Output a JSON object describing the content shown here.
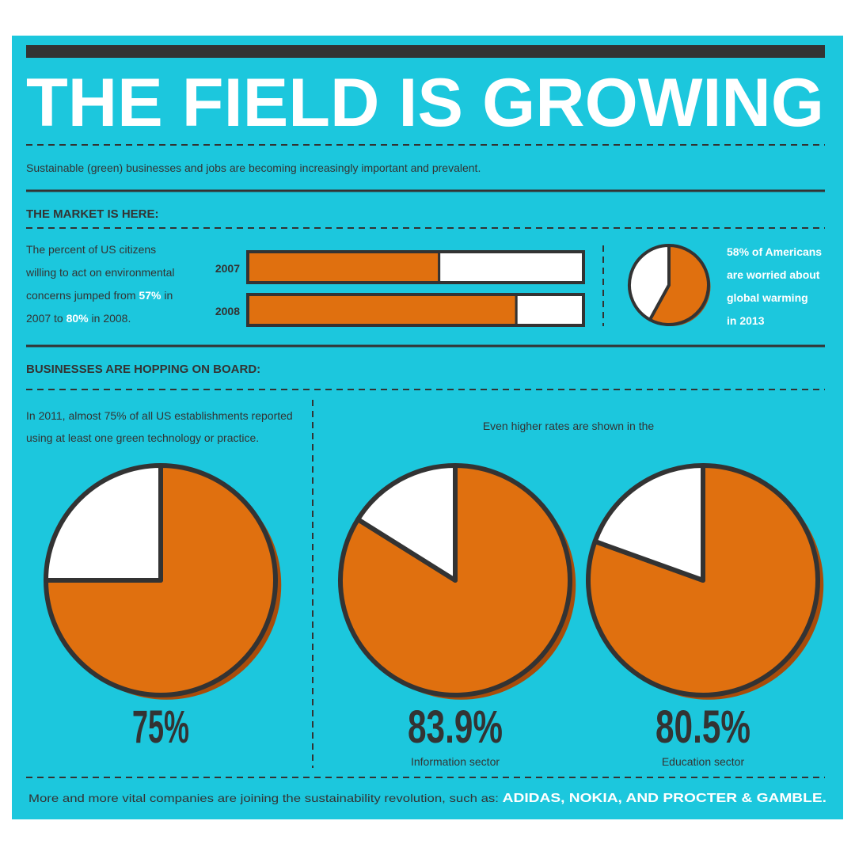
{
  "header": {
    "title": "THE FIELD IS GROWING",
    "subtitle": "Sustainable (green) businesses and jobs are becoming increasingly important and prevalent."
  },
  "market": {
    "heading": "THE MARKET IS HERE:",
    "lines": [
      [
        "The percent of US citizens"
      ],
      [
        "willing to act on environmental"
      ],
      [
        "concerns jumped from ",
        "57%",
        " in"
      ],
      [
        "2007 to ",
        "80%",
        " in 2008."
      ]
    ]
  },
  "businesses": {
    "heading": "BUSINESSES ARE HOPPING ON BOARD:",
    "lines": [
      [
        "In 2011, almost 75% of all US establishments reported"
      ],
      [
        "using at least one green technology or practice."
      ]
    ],
    "intro": "Even higher rates are shown in the"
  },
  "footer": {
    "parts": [
      "More and more vital companies are joining the sustainability revolution, such as: ",
      "ADIDAS, NOKIA, AND PROCTER & GAMBLE."
    ]
  },
  "chart_data": [
    {
      "type": "bar",
      "orientation": "horizontal",
      "categories": [
        "2007",
        "2008"
      ],
      "series": [
        {
          "color": "#e0700f",
          "values": [
            57,
            80
          ]
        },
        {
          "color": "#ffffff",
          "values": [
            43,
            20
          ]
        }
      ]
    },
    {
      "type": "pie",
      "values": [
        58,
        42
      ],
      "colors": [
        "#e0700f",
        "#ffffff"
      ],
      "lines": [
        [
          "58%",
          " of Americans"
        ],
        [
          "are worried about"
        ],
        [
          "global warming"
        ],
        [
          "in 2013"
        ]
      ]
    },
    {
      "type": "pie",
      "values": [
        75,
        25
      ],
      "colors": [
        "#e0700f",
        "#ffffff"
      ],
      "value_label": "75%"
    },
    {
      "type": "pie",
      "values": [
        83.9,
        16.1
      ],
      "colors": [
        "#e0700f",
        "#ffffff"
      ],
      "value_label": "83.9%",
      "caption": "Information sector"
    },
    {
      "type": "pie",
      "values": [
        80.5,
        19.5
      ],
      "colors": [
        "#e0700f",
        "#ffffff"
      ],
      "value_label": "80.5%",
      "caption": "Education sector"
    }
  ]
}
